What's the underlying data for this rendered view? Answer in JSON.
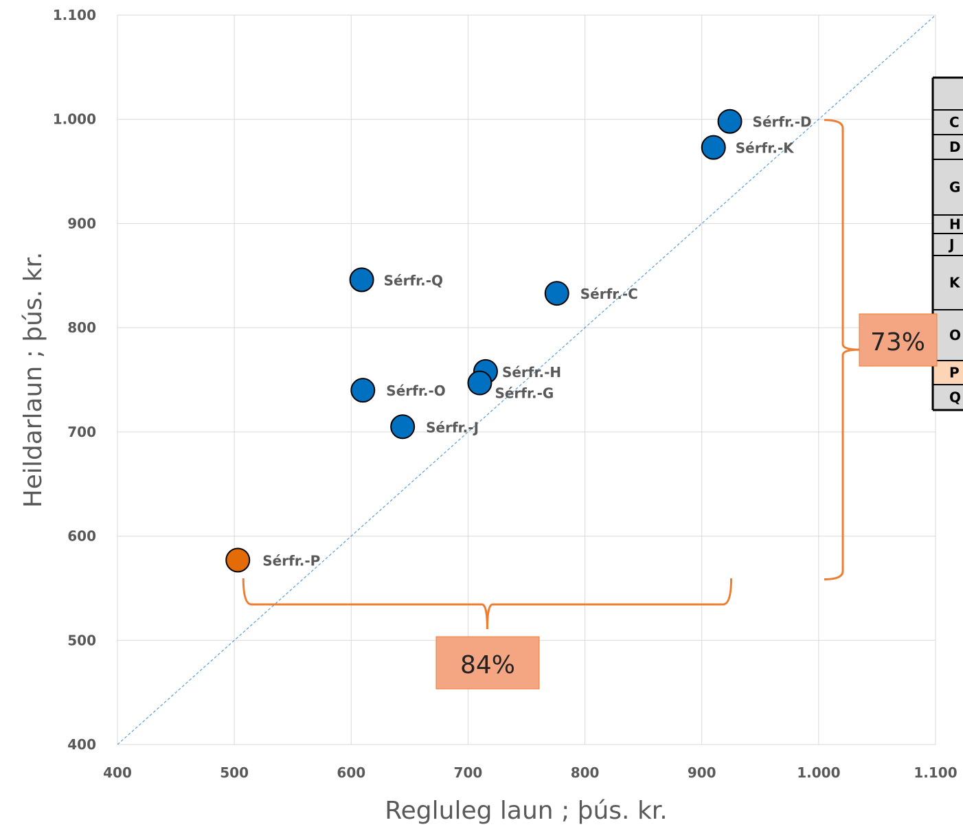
{
  "chart_data": {
    "type": "scatter",
    "xlabel": "Regluleg laun ; þús. kr.",
    "ylabel": "Heildarlaun ; þús. kr.",
    "xlim": [
      400,
      1100
    ],
    "ylim": [
      400,
      1100
    ],
    "x_ticks": [
      "400",
      "500",
      "600",
      "700",
      "800",
      "900",
      "1.000",
      "1.100"
    ],
    "y_ticks": [
      "400",
      "500",
      "600",
      "700",
      "800",
      "900",
      "1.000",
      "1.100"
    ],
    "grid": true,
    "reference_line": "y = x",
    "colors": {
      "default": "#0070C0",
      "highlight": "#E36C09",
      "bracket": "#ED7D31",
      "callout_fill": "#F4A582"
    },
    "points": [
      {
        "label": "Sérfr.-D",
        "x": 924,
        "y": 998,
        "color": "#0070C0"
      },
      {
        "label": "Sérfr.-K",
        "x": 910,
        "y": 973,
        "color": "#0070C0"
      },
      {
        "label": "Sérfr.-Q",
        "x": 609,
        "y": 846,
        "color": "#0070C0"
      },
      {
        "label": "Sérfr.-C",
        "x": 776,
        "y": 833,
        "color": "#0070C0"
      },
      {
        "label": "Sérfr.-H",
        "x": 715,
        "y": 758,
        "color": "#0070C0"
      },
      {
        "label": "Sérfr.-G",
        "x": 710,
        "y": 747,
        "color": "#0070C0"
      },
      {
        "label": "Sérfr.-O",
        "x": 610,
        "y": 740,
        "color": "#0070C0"
      },
      {
        "label": "Sérfr.-J",
        "x": 644,
        "y": 705,
        "color": "#0070C0"
      },
      {
        "label": "Sérfr.-P",
        "x": 503,
        "y": 577,
        "color": "#E36C09"
      }
    ],
    "annotations": [
      {
        "text": "84%",
        "type": "horizontal-bracket",
        "from": 503,
        "to": 924
      },
      {
        "text": "73%",
        "type": "vertical-bracket",
        "from": 577,
        "to": 998
      }
    ],
    "side_table_rows": [
      "C",
      "D",
      "G",
      "H",
      "J",
      "K",
      "O",
      "P",
      "Q"
    ]
  }
}
